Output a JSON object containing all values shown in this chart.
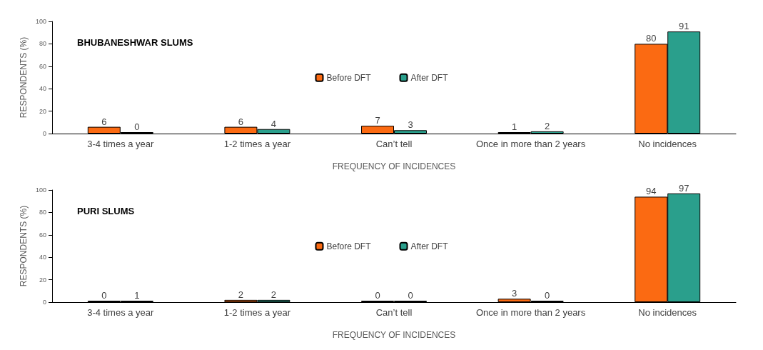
{
  "chart_data": [
    {
      "type": "bar",
      "title": "BHUBANESHWAR SLUMS",
      "xlabel": "FREQUENCY OF INCIDENCES",
      "ylabel": "RESPONDENTS (%)",
      "categories": [
        "3-4 times a year",
        "1-2 times a year",
        "Can’t tell",
        "Once in more than 2 years",
        "No incidences"
      ],
      "series": [
        {
          "name": "Before DFT",
          "color": "#fb6a12",
          "values": [
            6,
            6,
            7,
            1,
            80
          ]
        },
        {
          "name": "After DFT",
          "color": "#2a9f8c",
          "values": [
            0,
            4,
            3,
            2,
            91
          ]
        }
      ],
      "ylim": [
        0,
        100
      ],
      "yticks": [
        0,
        20,
        40,
        60,
        80,
        100
      ],
      "grid": false,
      "legend": "center",
      "data_labels": true
    },
    {
      "type": "bar",
      "title": "PURI SLUMS",
      "xlabel": "FREQUENCY OF INCIDENCES",
      "ylabel": "RESPONDENTS (%)",
      "categories": [
        "3-4 times a year",
        "1-2 times a year",
        "Can’t tell",
        "Once in more than 2 years",
        "No incidences"
      ],
      "series": [
        {
          "name": "Before DFT",
          "color": "#fb6a12",
          "values": [
            0,
            2,
            0,
            3,
            94
          ]
        },
        {
          "name": "After DFT",
          "color": "#2a9f8c",
          "values": [
            1,
            2,
            0,
            0,
            97
          ]
        }
      ],
      "ylim": [
        0,
        100
      ],
      "yticks": [
        0,
        20,
        40,
        60,
        80,
        100
      ],
      "grid": false,
      "legend": "center",
      "data_labels": true
    }
  ]
}
